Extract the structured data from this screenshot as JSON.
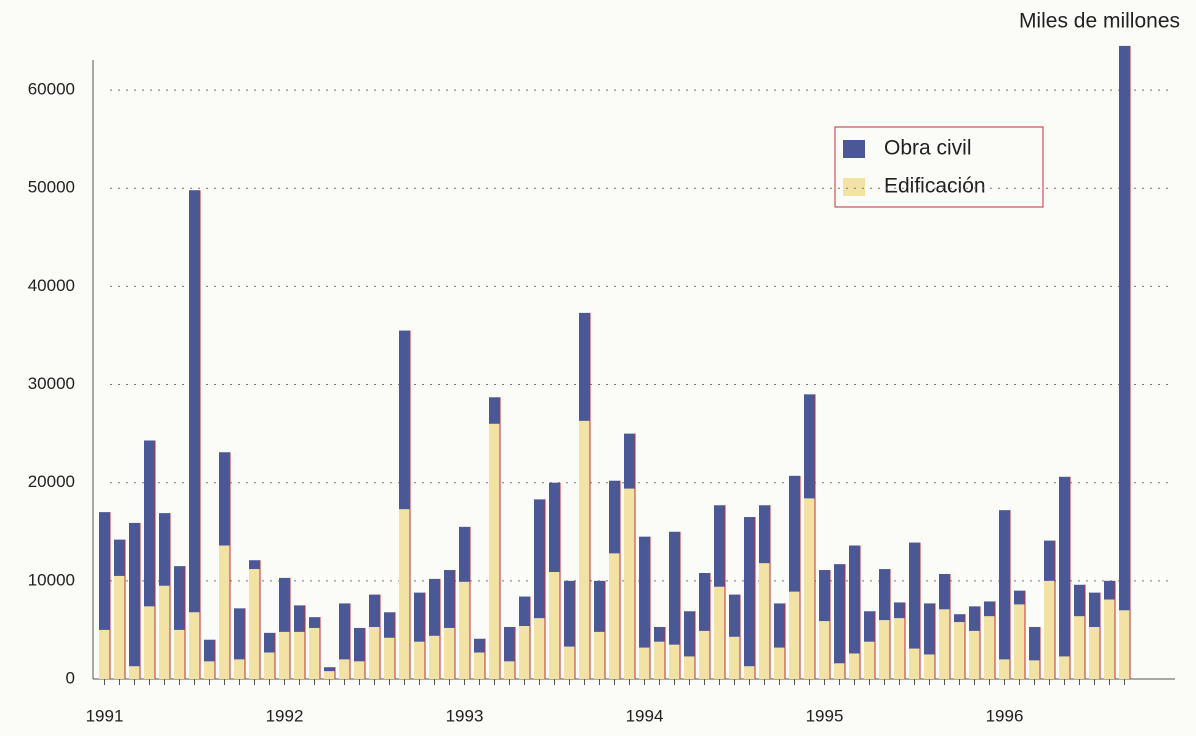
{
  "chart_data": {
    "type": "bar",
    "stacked": true,
    "unit_label": "Miles de millones",
    "categories": [
      "1991",
      null,
      null,
      null,
      null,
      null,
      null,
      null,
      null,
      null,
      null,
      null,
      "1992",
      null,
      null,
      null,
      null,
      null,
      null,
      null,
      null,
      null,
      null,
      null,
      "1993",
      null,
      null,
      null,
      null,
      null,
      null,
      null,
      null,
      null,
      null,
      null,
      "1994",
      null,
      null,
      null,
      null,
      null,
      null,
      null,
      null,
      null,
      null,
      null,
      "1995",
      null,
      null,
      null,
      null,
      null,
      null,
      null,
      null,
      null,
      null,
      null,
      "1996",
      null,
      null,
      null,
      null,
      null,
      null,
      null,
      null
    ],
    "series": [
      {
        "name": "Obra civil",
        "color": "#4a5896",
        "values": [
          12000,
          3700,
          14600,
          16900,
          7400,
          6500,
          43000,
          2200,
          9500,
          5200,
          900,
          2000,
          5500,
          2700,
          1100,
          400,
          5700,
          3400,
          3300,
          2600,
          18200,
          5000,
          5800,
          5900,
          5600,
          1400,
          2700,
          3500,
          3000,
          12100,
          9100,
          6700,
          11000,
          5200,
          7400,
          5600,
          11300,
          1500,
          11500,
          4600,
          5900,
          8300,
          4300,
          15200,
          5900,
          4500,
          11800,
          10600,
          5200,
          10100,
          11000,
          3100,
          5200,
          1600,
          10800,
          5200,
          3600,
          800,
          2500,
          1500,
          15200,
          1400,
          3400,
          4100,
          18300,
          3200,
          3500,
          1900,
          57500
        ]
      },
      {
        "name": "Edificación",
        "color": "#f2e2a4",
        "values": [
          5000,
          10500,
          1300,
          7400,
          9500,
          5000,
          6800,
          1800,
          13600,
          2000,
          11200,
          2700,
          4800,
          4800,
          5200,
          800,
          2000,
          1800,
          5300,
          4200,
          17300,
          3800,
          4400,
          5200,
          9900,
          2700,
          26000,
          1800,
          5400,
          6200,
          10900,
          3300,
          26300,
          4800,
          12800,
          19400,
          3200,
          3800,
          3500,
          2300,
          4900,
          9400,
          4300,
          1300,
          11800,
          3200,
          8900,
          18400,
          5900,
          1600,
          2600,
          3800,
          6000,
          6200,
          3100,
          2500,
          7100,
          5800,
          4900,
          6400,
          2000,
          7600,
          1900,
          10000,
          2300,
          6400,
          5300,
          8100,
          7000
        ]
      }
    ],
    "ylim": [
      0,
      65000
    ],
    "yticks": [
      0,
      10000,
      20000,
      30000,
      40000,
      50000,
      60000
    ],
    "grid": true,
    "legend": "upper right"
  }
}
